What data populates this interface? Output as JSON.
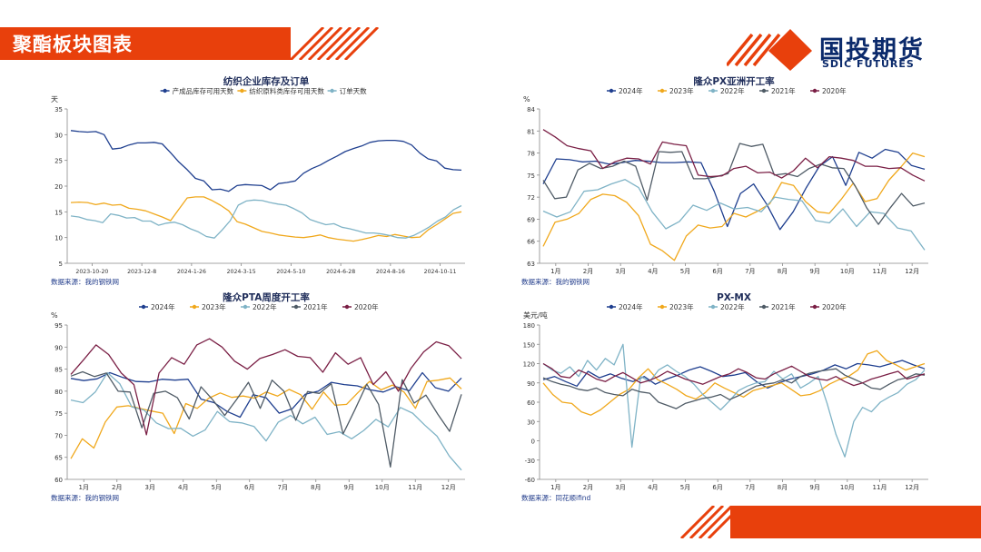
{
  "header": {
    "title": "聚酯板块图表"
  },
  "logo": {
    "cn": "国投期货",
    "en": "SDIC FUTURES"
  },
  "colors": {
    "accent": "#e8400c",
    "navy": "#0b2a6b",
    "s2024": "#1f3f8f",
    "s2023": "#f0a81c",
    "s2022": "#7fb3c6",
    "s2021": "#4f5b66",
    "s2020": "#7a1f45"
  },
  "source_texts": [
    "数据来源：我的钢铁网",
    "数据来源：我的钢铁网",
    "数据来源：我的钢铁网",
    "数据来源：同花顺ifind"
  ],
  "chart_data": [
    {
      "type": "line",
      "title": "纺织企业库存及订单",
      "ylabel": "天",
      "ylim": [
        5,
        35
      ],
      "yticks": [
        5,
        10,
        15,
        20,
        25,
        30,
        35
      ],
      "xticks": [
        "2023-10-20",
        "2023-12-8",
        "2024-1-26",
        "2024-3-15",
        "2024-5-10",
        "2024-6-28",
        "2024-8-16",
        "2024-10-11"
      ],
      "series": [
        {
          "name": "产成品库存可用天数",
          "color": "#1f3f8f",
          "values": [
            30.8,
            30.6,
            30.5,
            30.6,
            30.0,
            27.2,
            27.4,
            28.0,
            28.4,
            28.4,
            28.5,
            28.2,
            26.5,
            24.7,
            23.2,
            21.5,
            21.0,
            19.3,
            19.4,
            19.0,
            20.1,
            20.3,
            20.2,
            20.1,
            19.3,
            20.5,
            20.7,
            21.0,
            22.5,
            23.4,
            24.1,
            25.0,
            25.8,
            26.7,
            27.3,
            27.8,
            28.5,
            28.8,
            28.9,
            28.9,
            28.7,
            28.0,
            26.4,
            25.3,
            24.9,
            23.5,
            23.2,
            23.1
          ]
        },
        {
          "name": "纺织原料类库存可用天数",
          "color": "#f0a81c",
          "values": [
            16.8,
            16.9,
            16.8,
            16.4,
            16.7,
            16.3,
            16.4,
            15.7,
            15.5,
            15.2,
            14.6,
            14.0,
            13.3,
            15.5,
            17.7,
            17.9,
            17.9,
            17.2,
            16.3,
            15.2,
            13.1,
            12.6,
            11.9,
            11.2,
            10.9,
            10.5,
            10.3,
            10.1,
            10.0,
            10.2,
            10.5,
            10.0,
            9.7,
            9.5,
            9.3,
            9.6,
            10.0,
            10.4,
            10.2,
            10.6,
            10.3,
            10.0,
            10.1,
            11.5,
            12.5,
            13.6,
            14.7,
            15.0
          ]
        },
        {
          "name": "订单天数",
          "color": "#7fb3c6",
          "values": [
            14.2,
            14.0,
            13.5,
            13.3,
            12.9,
            14.6,
            14.3,
            13.8,
            13.9,
            13.2,
            13.2,
            12.4,
            12.8,
            13.0,
            12.5,
            11.7,
            11.1,
            10.2,
            9.9,
            11.5,
            13.3,
            16.3,
            17.1,
            17.3,
            17.2,
            16.8,
            16.5,
            16.3,
            15.6,
            14.8,
            13.5,
            13.0,
            12.5,
            12.7,
            12.0,
            11.7,
            11.3,
            10.9,
            10.9,
            10.7,
            10.4,
            10.0,
            9.9,
            10.4,
            11.2,
            12.1,
            13.2,
            14.0,
            15.4,
            16.2
          ]
        }
      ]
    },
    {
      "type": "line",
      "title": "隆众PX亚洲开工率",
      "ylabel": "%",
      "ylim": [
        63,
        84
      ],
      "yticks": [
        63,
        66,
        69,
        72,
        75,
        78,
        81,
        84
      ],
      "xticks": [
        "1月",
        "2月",
        "3月",
        "4月",
        "5月",
        "6月",
        "7月",
        "8月",
        "9月",
        "10月",
        "11月",
        "12月"
      ],
      "series": [
        {
          "name": "2024年",
          "color": "#1f3f8f",
          "values": [
            73.8,
            77.2,
            77.1,
            76.8,
            76.9,
            76.5,
            76.7,
            77.0,
            76.9,
            76.7,
            76.7,
            76.8,
            76.7,
            72.8,
            68.0,
            72.5,
            73.8,
            71.0,
            67.6,
            70.0,
            73.3,
            76.2,
            77.5,
            73.6,
            78.1,
            77.3,
            78.5,
            78.1,
            76.3,
            75.8
          ]
        },
        {
          "name": "2023年",
          "color": "#f0a81c",
          "values": [
            65.3,
            68.6,
            69.0,
            69.8,
            71.7,
            72.4,
            72.2,
            71.3,
            69.5,
            65.6,
            64.7,
            63.4,
            66.7,
            68.2,
            67.8,
            68.0,
            69.8,
            69.3,
            70.1,
            71.1,
            74.0,
            73.6,
            71.4,
            70.0,
            69.8,
            71.7,
            73.9,
            71.4,
            71.8,
            74.3,
            76.1,
            78.0,
            77.5
          ]
        },
        {
          "name": "2022年",
          "color": "#7fb3c6",
          "values": [
            70.1,
            69.3,
            70.0,
            72.8,
            73.0,
            73.8,
            74.4,
            73.3,
            70.0,
            67.7,
            68.7,
            70.9,
            70.2,
            71.2,
            70.4,
            70.6,
            70.0,
            72.0,
            71.7,
            71.5,
            68.8,
            68.5,
            70.4,
            68.0,
            70.0,
            69.8,
            67.8,
            67.4,
            64.8
          ]
        },
        {
          "name": "2021年",
          "color": "#4f5b66",
          "values": [
            74.3,
            71.8,
            72.0,
            75.7,
            76.6,
            75.9,
            76.2,
            76.9,
            76.2,
            71.6,
            78.2,
            78.1,
            78.2,
            74.5,
            74.5,
            74.8,
            75.2,
            79.3,
            78.9,
            79.2,
            75.0,
            75.2,
            74.8,
            75.9,
            76.5,
            76.0,
            75.9,
            73.5,
            70.5,
            68.3,
            70.5,
            72.5,
            70.8,
            71.2
          ]
        },
        {
          "name": "2020年",
          "color": "#7a1f45",
          "values": [
            81.2,
            80.2,
            79.0,
            78.6,
            78.3,
            75.9,
            76.8,
            77.3,
            77.2,
            76.5,
            79.5,
            79.2,
            79.0,
            75.0,
            74.8,
            74.9,
            75.9,
            76.2,
            75.3,
            75.4,
            74.6,
            75.6,
            77.3,
            76.0,
            77.5,
            77.3,
            77.0,
            76.2,
            76.2,
            75.9,
            76.0,
            75.0,
            74.2
          ]
        }
      ]
    },
    {
      "type": "line",
      "title": "隆众PTA周度开工率",
      "ylabel": "%",
      "ylim": [
        60,
        95
      ],
      "yticks": [
        60,
        65,
        70,
        75,
        80,
        85,
        90,
        95
      ],
      "xticks": [
        "1月",
        "2月",
        "3月",
        "4月",
        "5月",
        "6月",
        "7月",
        "8月",
        "9月",
        "10月",
        "11月",
        "12月"
      ],
      "series": [
        {
          "name": "2024年",
          "color": "#1f3f8f",
          "values": [
            82.9,
            82.4,
            82.8,
            84.2,
            83.1,
            82.2,
            82.1,
            82.7,
            82.5,
            82.7,
            78.2,
            77.4,
            75.4,
            74.1,
            79.2,
            78.5,
            75.0,
            76.0,
            79.3,
            80.0,
            82.0,
            81.5,
            81.2,
            80.3,
            79.8,
            81.0,
            80.1,
            84.2,
            80.8,
            80.0,
            83.0
          ]
        },
        {
          "name": "2023年",
          "color": "#f0a81c",
          "values": [
            64.7,
            69.2,
            67.1,
            73.0,
            76.4,
            76.7,
            76.1,
            75.5,
            75.0,
            70.4,
            77.2,
            76.1,
            78.4,
            79.6,
            78.6,
            78.9,
            78.4,
            79.8,
            78.9,
            80.4,
            79.2,
            75.9,
            79.8,
            76.8,
            77.0,
            79.7,
            82.2,
            80.3,
            81.4,
            79.8,
            76.1,
            82.2,
            82.5,
            83.0,
            80.5
          ]
        },
        {
          "name": "2022年",
          "color": "#7fb3c6",
          "values": [
            78.0,
            77.4,
            79.8,
            84.2,
            81.7,
            76.4,
            75.7,
            72.8,
            71.5,
            71.6,
            69.8,
            71.2,
            75.4,
            73.1,
            72.8,
            72.0,
            68.7,
            73.0,
            74.5,
            72.6,
            74.1,
            70.2,
            70.8,
            69.2,
            71.1,
            73.6,
            71.9,
            76.3,
            75.0,
            72.3,
            69.8,
            65.3,
            62.1
          ]
        },
        {
          "name": "2021年",
          "color": "#4f5b66",
          "values": [
            83.4,
            84.4,
            83.3,
            84.1,
            80.0,
            79.8,
            71.7,
            79.5,
            80.0,
            78.5,
            73.7,
            81.0,
            78.0,
            74.5,
            78.1,
            82.0,
            76.1,
            82.5,
            80.0,
            73.4,
            79.9,
            79.5,
            81.7,
            70.3,
            75.8,
            81.6,
            77.0,
            62.8,
            82.6,
            77.3,
            79.1,
            74.8,
            70.9,
            79.3
          ]
        },
        {
          "name": "2020年",
          "color": "#7a1f45",
          "values": [
            83.8,
            87.1,
            90.5,
            88.3,
            84.1,
            81.5,
            70.1,
            84.1,
            87.6,
            86.1,
            90.5,
            91.9,
            90.0,
            86.8,
            85.0,
            87.4,
            88.3,
            89.4,
            87.9,
            87.6,
            84.3,
            88.7,
            86.1,
            87.6,
            81.5,
            84.4,
            80.0,
            85.2,
            88.9,
            91.2,
            90.3,
            87.4
          ]
        }
      ]
    },
    {
      "type": "line",
      "title": "PX-MX",
      "ylabel": "美元/吨",
      "ylim": [
        -60,
        180
      ],
      "yticks": [
        -60,
        -30,
        0,
        30,
        60,
        90,
        120,
        150,
        180
      ],
      "xticks": [
        "1月",
        "2月",
        "3月",
        "4月",
        "5月",
        "6月",
        "7月",
        "8月",
        "9月",
        "10月",
        "11月",
        "12月"
      ],
      "series": [
        {
          "name": "2024年",
          "color": "#1f3f8f",
          "values": [
            95,
            100,
            92,
            85,
            108,
            98,
            104,
            97,
            92,
            100,
            88,
            96,
            102,
            110,
            115,
            108,
            100,
            102,
            106,
            92,
            82,
            90,
            96,
            100,
            104,
            110,
            118,
            112,
            120,
            118,
            115,
            120,
            125,
            118,
            112
          ]
        },
        {
          "name": "2023年",
          "color": "#f0a81c",
          "values": [
            90,
            72,
            60,
            58,
            45,
            40,
            48,
            60,
            72,
            80,
            98,
            112,
            95,
            88,
            80,
            70,
            65,
            75,
            90,
            82,
            75,
            68,
            78,
            82,
            86,
            90,
            80,
            70,
            72,
            78,
            88,
            95,
            100,
            110,
            135,
            140,
            125,
            118,
            110,
            115,
            120
          ]
        },
        {
          "name": "2022年",
          "color": "#7fb3c6",
          "values": [
            120,
            110,
            105,
            115,
            100,
            125,
            110,
            128,
            118,
            150,
            -10,
            100,
            92,
            110,
            118,
            108,
            100,
            88,
            72,
            60,
            48,
            62,
            78,
            85,
            90,
            92,
            108,
            96,
            104,
            82,
            90,
            100,
            58,
            10,
            -25,
            30,
            52,
            45,
            60,
            68,
            75,
            88,
            95,
            110
          ]
        },
        {
          "name": "2021年",
          "color": "#4f5b66",
          "values": [
            98,
            92,
            88,
            85,
            80,
            78,
            82,
            75,
            72,
            70,
            80,
            76,
            74,
            60,
            55,
            50,
            58,
            62,
            66,
            68,
            72,
            64,
            70,
            78,
            85,
            88,
            90,
            95,
            90,
            100,
            105,
            108,
            110,
            112,
            102,
            96,
            90,
            82,
            80,
            88,
            95,
            98,
            104,
            102
          ]
        },
        {
          "name": "2020年",
          "color": "#7a1f45",
          "values": [
            120,
            112,
            100,
            98,
            110,
            104,
            96,
            92,
            100,
            106,
            98,
            90,
            94,
            100,
            108,
            102,
            96,
            92,
            88,
            94,
            100,
            104,
            112,
            106,
            98,
            96,
            104,
            110,
            116,
            108,
            100,
            96,
            94,
            100,
            92,
            86,
            90,
            96,
            100,
            104,
            108,
            96,
            100,
            104
          ]
        }
      ]
    }
  ]
}
